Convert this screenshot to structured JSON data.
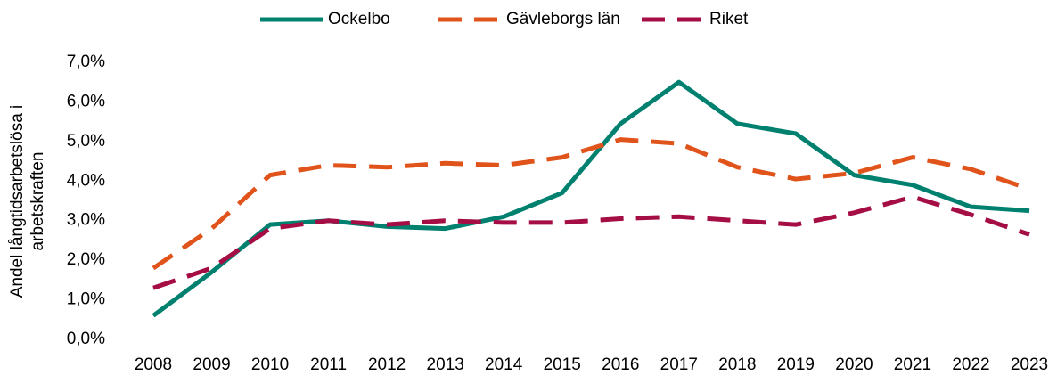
{
  "chart_data": {
    "type": "line",
    "ylabel": [
      "Andel långtidsarbetslösa i",
      "arbetskraften"
    ],
    "categories": [
      "2008",
      "2009",
      "2010",
      "2011",
      "2012",
      "2013",
      "2014",
      "2015",
      "2016",
      "2017",
      "2018",
      "2019",
      "2020",
      "2021",
      "2022",
      "2023"
    ],
    "series": [
      {
        "name": "Ockelbo",
        "color": "#00806e",
        "dashed": false,
        "values": [
          0.6,
          1.7,
          2.9,
          3.0,
          2.85,
          2.8,
          3.1,
          3.7,
          5.45,
          6.5,
          5.45,
          5.2,
          4.15,
          3.9,
          3.35,
          3.25
        ]
      },
      {
        "name": "Gävleborgs län",
        "color": "#e0541b",
        "dashed": true,
        "values": [
          1.8,
          2.8,
          4.15,
          4.4,
          4.35,
          4.45,
          4.4,
          4.6,
          5.05,
          4.95,
          4.35,
          4.05,
          4.2,
          4.6,
          4.3,
          3.8
        ]
      },
      {
        "name": "Riket",
        "color": "#a50d45",
        "dashed": true,
        "values": [
          1.3,
          1.8,
          2.8,
          3.0,
          2.9,
          3.0,
          2.95,
          2.95,
          3.05,
          3.1,
          3.0,
          2.9,
          3.2,
          3.6,
          3.15,
          2.65
        ]
      }
    ],
    "ylim": [
      0,
      7
    ],
    "yticks": [
      {
        "value": 0,
        "label": "0,0%"
      },
      {
        "value": 1,
        "label": "1,0%"
      },
      {
        "value": 2,
        "label": "2,0%"
      },
      {
        "value": 3,
        "label": "3,0%"
      },
      {
        "value": 4,
        "label": "4,0%"
      },
      {
        "value": 5,
        "label": "5,0%"
      },
      {
        "value": 6,
        "label": "6,0%"
      },
      {
        "value": 7,
        "label": "7,0%"
      }
    ],
    "legend": "top"
  }
}
